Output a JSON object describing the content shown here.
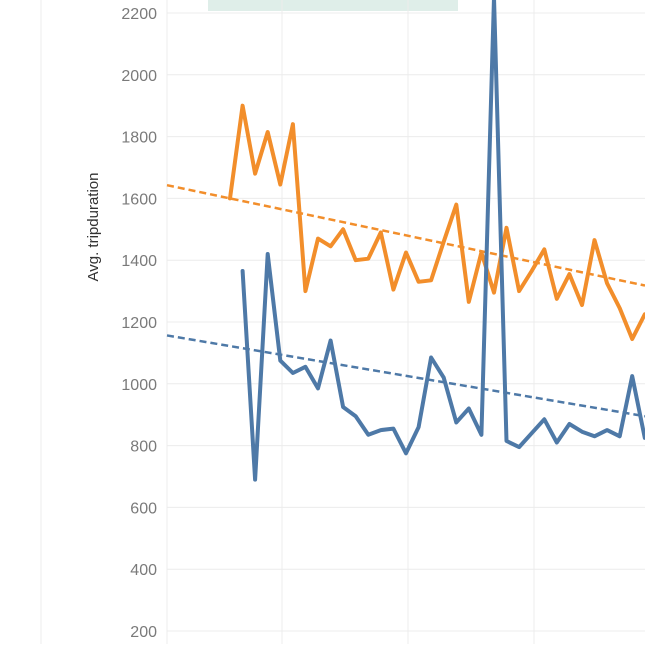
{
  "chart_data": {
    "type": "line",
    "ylabel": "Avg. tripduration",
    "xlabel": "",
    "ylim": [
      200,
      2200
    ],
    "yticks": [
      200,
      400,
      600,
      800,
      1000,
      1200,
      1400,
      1600,
      1800,
      2000,
      2200
    ],
    "x": [
      0,
      1,
      2,
      3,
      4,
      5,
      6,
      7,
      8,
      9,
      10,
      11,
      12,
      13,
      14,
      15,
      16,
      17,
      18,
      19,
      20,
      21,
      22,
      23,
      24,
      25,
      26,
      27,
      28,
      29,
      30,
      31,
      32,
      33,
      34,
      35
    ],
    "grid": true,
    "highlight_band_color": "#dfeee9",
    "series": [
      {
        "color": "#f28e2b",
        "values": [
          1600,
          1900,
          1680,
          1815,
          1645,
          1840,
          1300,
          1470,
          1445,
          1500,
          1400,
          1405,
          1490,
          1305,
          1425,
          1330,
          1335,
          1460,
          1580,
          1265,
          1425,
          1295,
          1505,
          1300,
          1365,
          1435,
          1275,
          1355,
          1255,
          1465,
          1325,
          1245,
          1145,
          1225,
          null,
          null
        ],
        "trend": [
          1600,
          1318
        ]
      },
      {
        "color": "#4e79a7",
        "values": [
          null,
          1365,
          690,
          1420,
          1075,
          1035,
          1055,
          985,
          1140,
          925,
          895,
          835,
          850,
          855,
          775,
          860,
          1085,
          1020,
          875,
          920,
          835,
          2250,
          815,
          795,
          840,
          885,
          810,
          870,
          845,
          830,
          850,
          830,
          1025,
          825,
          null,
          null
        ],
        "trend": [
          1122,
          895
        ]
      }
    ]
  }
}
